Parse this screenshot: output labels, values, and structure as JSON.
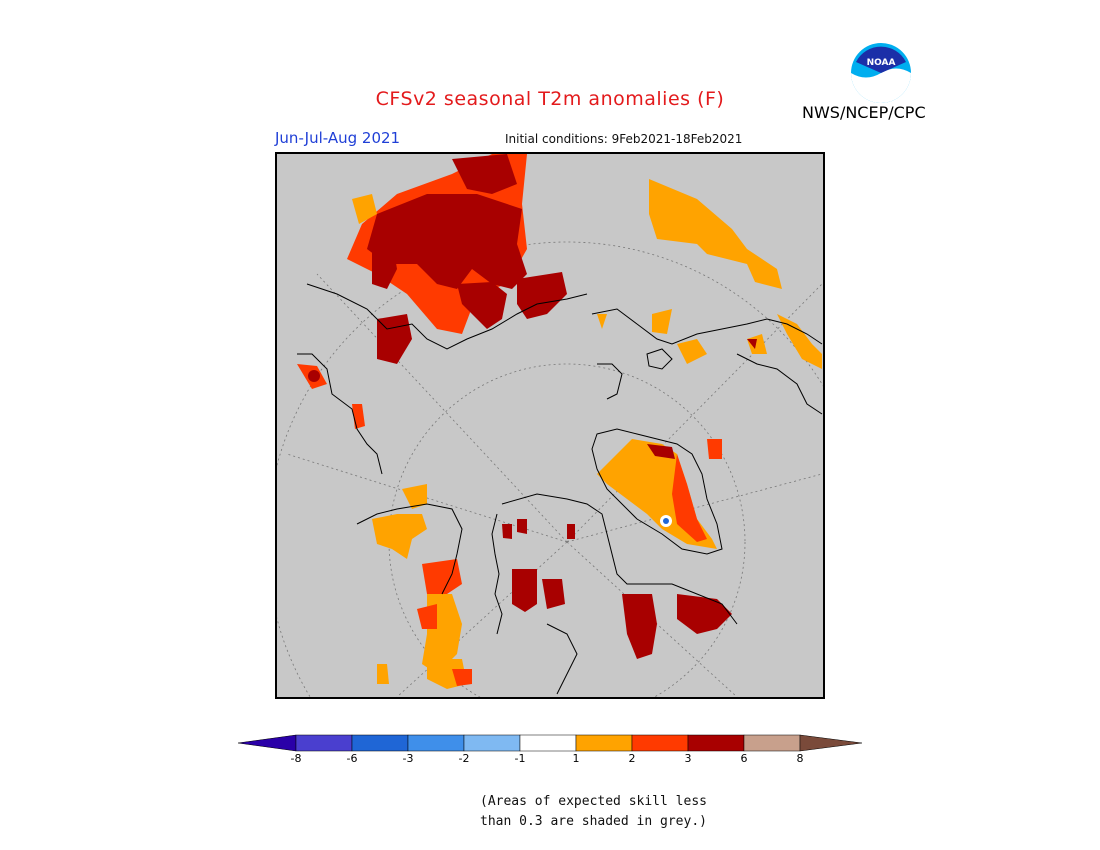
{
  "header": {
    "title": "CFSv2 seasonal T2m anomalies (F)",
    "season": "Jun-Jul-Aug 2021",
    "initial_conditions": "Initial conditions: 9Feb2021-18Feb2021",
    "agency": "NWS/NCEP/CPC",
    "logo_text": "NOAA"
  },
  "legend": {
    "ticks": [
      "-8",
      "-6",
      "-3",
      "-2",
      "-1",
      "1",
      "2",
      "3",
      "6",
      "8"
    ],
    "colors": [
      "#2a00a8",
      "#4a3fcf",
      "#1f66d6",
      "#3f8fea",
      "#7fb9f2",
      "#ffffff",
      "#ffa300",
      "#ff3a00",
      "#a80000",
      "#c8a08c",
      "#7a4a3a"
    ],
    "under_color": "#2a00a8",
    "over_color": "#7a4a3a"
  },
  "map": {
    "projection": "north-polar-stereographic",
    "background_color": "#c8c8c8",
    "coastline_color": "#000000"
  },
  "footnote": {
    "line1": "(Areas of expected skill less",
    "line2": "than 0.3 are shaded in grey.)"
  }
}
